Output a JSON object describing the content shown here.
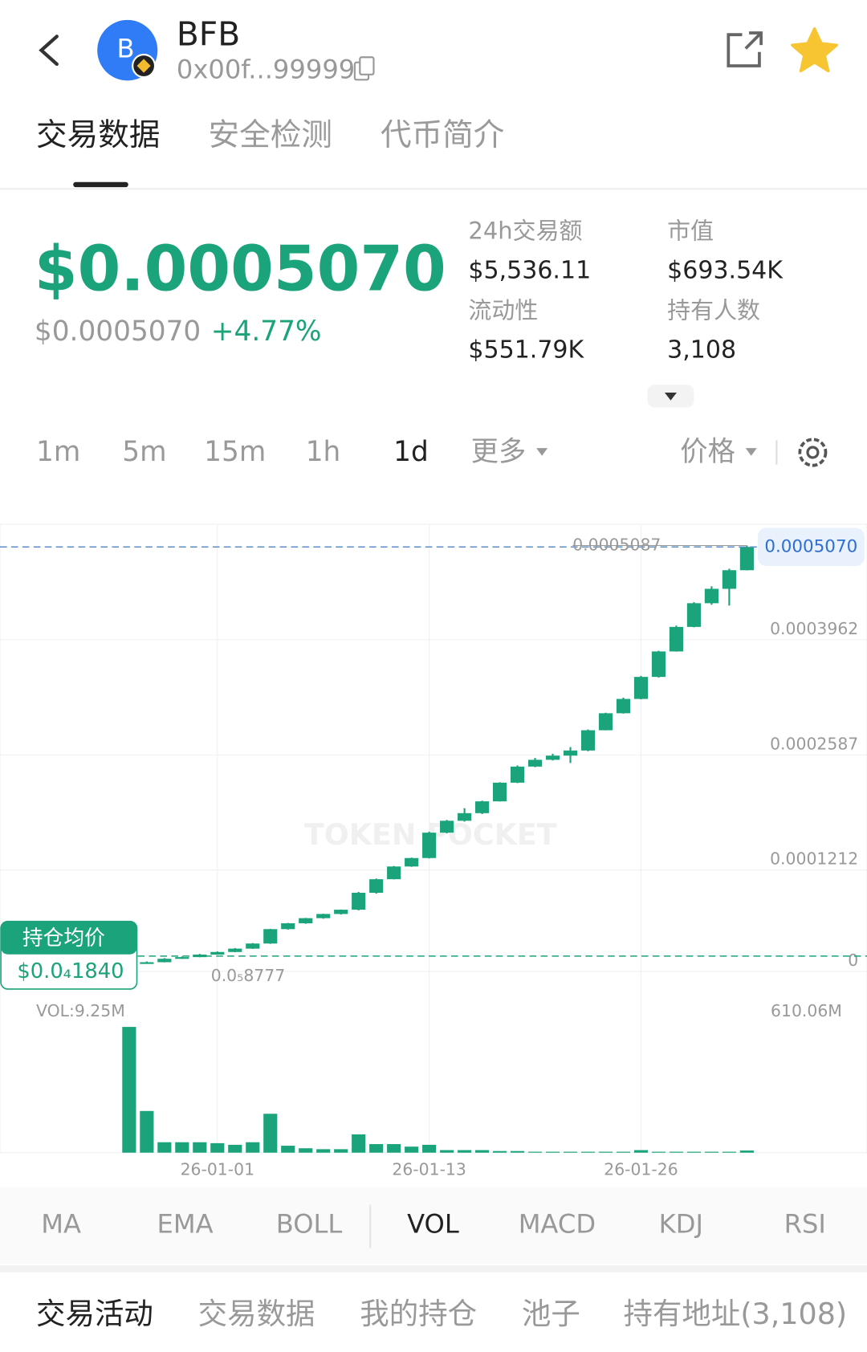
{
  "header": {
    "title": "BFB",
    "address": "0x00f...99999",
    "avatar_letter": "B"
  },
  "tabs": [
    "交易数据",
    "安全检测",
    "代币简介"
  ],
  "price": {
    "main": "$0.0005070",
    "sub": "$0.0005070",
    "change": "+4.77%"
  },
  "stats": [
    {
      "label": "24h交易额",
      "value": "$5,536.11"
    },
    {
      "label": "市值",
      "value": "$693.54K"
    },
    {
      "label": "流动性",
      "value": "$551.79K"
    },
    {
      "label": "持有人数",
      "value": "3,108"
    }
  ],
  "timeframes": [
    "1m",
    "5m",
    "15m",
    "1h",
    "1d",
    "更多"
  ],
  "price_selector": "价格",
  "chart_data": {
    "type": "candlestick",
    "color": "#1ba37b",
    "grid": true,
    "watermark": "TOKEN POCKET",
    "categories": [
      null,
      null,
      null,
      null,
      null,
      "26-01-01",
      null,
      null,
      null,
      null,
      null,
      null,
      null,
      null,
      null,
      null,
      null,
      "26-01-13",
      null,
      null,
      null,
      null,
      null,
      null,
      null,
      null,
      null,
      null,
      null,
      "26-01-26",
      null,
      null,
      null,
      null,
      null,
      null
    ],
    "open": [
      8.8e-06,
      9.6e-06,
      1.11e-05,
      1.52e-05,
      1.72e-05,
      2.02e-05,
      2.33e-05,
      2.73e-05,
      3.34e-05,
      5.06e-05,
      5.76e-05,
      6.37e-05,
      6.87e-05,
      7.38e-05,
      9.4e-05,
      0.0001102,
      0.0001254,
      0.0001355,
      0.0001658,
      0.00018,
      0.0001891,
      0.0002032,
      0.0002255,
      0.0002447,
      0.0002528,
      0.0002578,
      0.0002639,
      0.0002881,
      0.0003084,
      0.0003255,
      0.0003518,
      0.0003822,
      0.0004115,
      0.0004398,
      0.000457,
      0.0004792
    ],
    "high": [
      1e-05,
      1.2e-05,
      1.6e-05,
      1.8e-05,
      2.1e-05,
      2.4e-05,
      2.8e-05,
      3.4e-05,
      5.1e-05,
      5.8e-05,
      6.4e-05,
      6.9e-05,
      7.4e-05,
      9.5e-05,
      0.000111,
      0.000126,
      0.000136,
      0.000167,
      0.000181,
      0.000195,
      0.000204,
      0.000226,
      0.000246,
      0.000255,
      0.00026,
      0.000268,
      0.000289,
      0.000309,
      0.000327,
      0.000353,
      0.000383,
      0.000413,
      0.000441,
      0.00046,
      0.000481,
      0.0005087
    ],
    "low": [
      8.777e-06,
      9.4e-06,
      1.09e-05,
      1.5e-05,
      1.7e-05,
      2e-05,
      2.3e-05,
      2.7e-05,
      3.3e-05,
      5e-05,
      5.7e-05,
      6.3e-05,
      6.8e-05,
      7.3e-05,
      9.3e-05,
      0.00011,
      0.000125,
      0.000135,
      0.000165,
      0.000179,
      0.000188,
      0.000203,
      0.000225,
      0.000244,
      0.000252,
      0.000249,
      0.000263,
      0.000288,
      0.000308,
      0.000325,
      0.000351,
      0.000382,
      0.000411,
      0.000438,
      0.000437,
      0.000479
    ],
    "close": [
      9.6e-06,
      1.11e-05,
      1.52e-05,
      1.72e-05,
      2.02e-05,
      2.33e-05,
      2.73e-05,
      3.34e-05,
      5.06e-05,
      5.76e-05,
      6.37e-05,
      6.87e-05,
      7.38e-05,
      9.4e-05,
      0.0001102,
      0.0001254,
      0.0001355,
      0.0001658,
      0.00018,
      0.0001891,
      0.0002032,
      0.0002255,
      0.0002447,
      0.0002528,
      0.0002578,
      0.0002639,
      0.0002881,
      0.0003084,
      0.0003255,
      0.0003518,
      0.0003822,
      0.0004115,
      0.0004398,
      0.000457,
      0.0004792,
      0.000507
    ],
    "volume": [
      543000000,
      180000000,
      45000000,
      45000000,
      45000000,
      41000000,
      34000000,
      45000000,
      168000000,
      30000000,
      19000000,
      15000000,
      15000000,
      79000000,
      37000000,
      37000000,
      26000000,
      34000000,
      11000000,
      11000000,
      11000000,
      7000000,
      7000000,
      4000000,
      4000000,
      4000000,
      4000000,
      4000000,
      4000000,
      11000000,
      4000000,
      4000000,
      4000000,
      4000000,
      4000000,
      9250000
    ],
    "ylim": [
      -1.97e-05,
      0.000534
    ],
    "yticks": [
      0,
      0.0001212,
      0.0002587,
      0.0003962
    ],
    "current_price": {
      "value": 0.000507,
      "label": "0.0005070"
    },
    "max_label": "0.0005087",
    "min_label": "0.0₅8777",
    "avg_cost": {
      "value": 1.84e-05,
      "title": "持仓均价",
      "label": "$0.0₄1840"
    },
    "vol_label": "VOL:9.25M",
    "vol_ylim": [
      0,
      610060000
    ],
    "vol_ticks": [
      {
        "value": 610060000,
        "label": "610.06M"
      }
    ]
  },
  "indicators": [
    "MA",
    "EMA",
    "BOLL",
    "VOL",
    "MACD",
    "KDJ",
    "RSI"
  ],
  "bottom_tabs": [
    "交易活动",
    "交易数据",
    "我的持仓",
    "池子",
    "持有地址(3,108)"
  ]
}
